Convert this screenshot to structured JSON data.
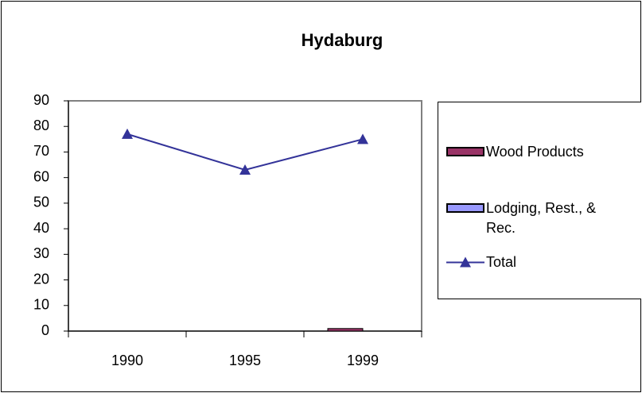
{
  "chart_data": {
    "type": "bar",
    "title": "Hydaburg",
    "categories": [
      "1990",
      "1995",
      "1999"
    ],
    "series": [
      {
        "name": "Wood Products",
        "color": "#993366",
        "values": [
          0,
          0,
          1
        ]
      },
      {
        "name": "Lodging, Rest., & Rec.",
        "color": "#9999ff",
        "values": [
          0,
          0,
          0
        ]
      },
      {
        "name": "Total",
        "type": "line",
        "marker": "triangle",
        "color": "#333399",
        "values": [
          77,
          63,
          75
        ]
      }
    ],
    "ylim": [
      0,
      90
    ],
    "yticks": [
      0,
      10,
      20,
      30,
      40,
      50,
      60,
      70,
      80,
      90
    ],
    "grid": false,
    "legend": "right"
  }
}
